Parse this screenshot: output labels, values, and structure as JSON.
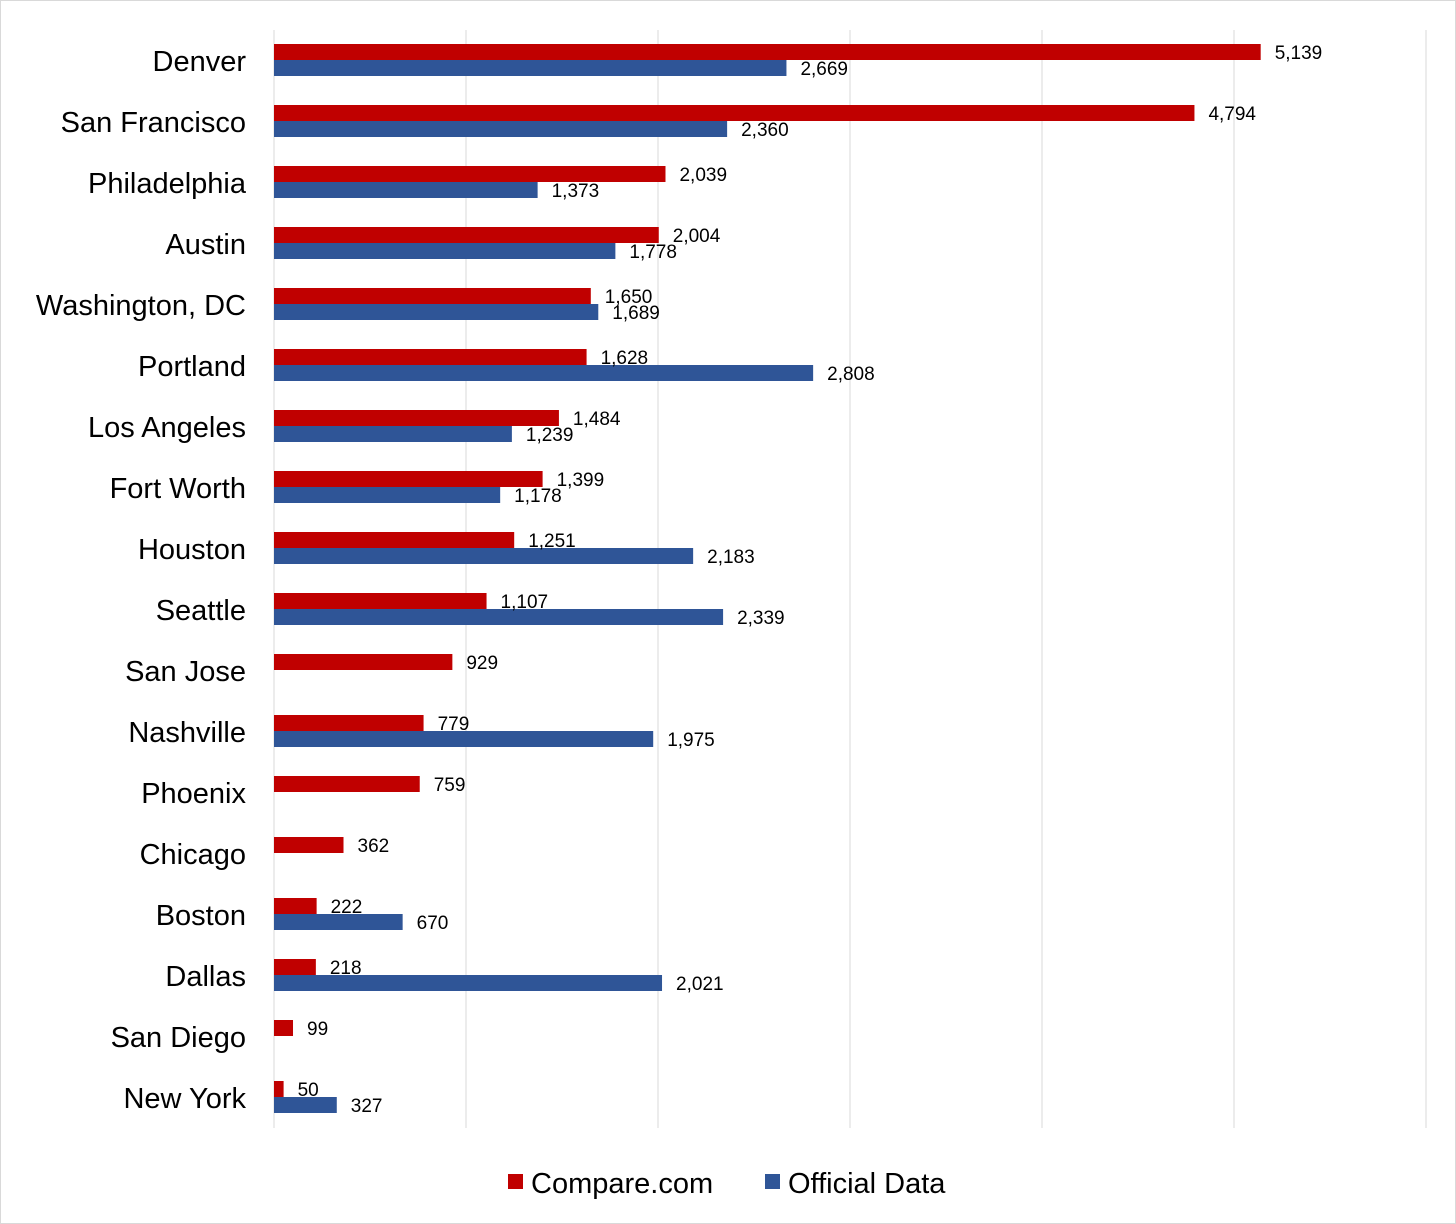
{
  "chart_data": {
    "type": "bar",
    "orientation": "horizontal",
    "categories": [
      "Denver",
      "San Francisco",
      "Philadelphia",
      "Austin",
      "Washington, DC",
      "Portland",
      "Los Angeles",
      "Fort Worth",
      "Houston",
      "Seattle",
      "San Jose",
      "Nashville",
      "Phoenix",
      "Chicago",
      "Boston",
      "Dallas",
      "San Diego",
      "New York"
    ],
    "series": [
      {
        "name": "Compare.com",
        "color": "#c00000",
        "values": [
          5139,
          4794,
          2039,
          2004,
          1650,
          1628,
          1484,
          1399,
          1251,
          1107,
          929,
          779,
          759,
          362,
          222,
          218,
          99,
          50
        ],
        "labels": [
          "5,139",
          "4,794",
          "2,039",
          "2,004",
          "1,650",
          "1,628",
          "1,484",
          "1,399",
          "1,251",
          "1,107",
          "929",
          "779",
          "759",
          "362",
          "222",
          "218",
          "99",
          "50"
        ]
      },
      {
        "name": "Official Data",
        "color": "#2f5597",
        "values": [
          2669,
          2360,
          1373,
          1778,
          1689,
          2808,
          1239,
          1178,
          2183,
          2339,
          null,
          1975,
          null,
          null,
          670,
          2021,
          null,
          327
        ],
        "labels": [
          "2,669",
          "2,360",
          "1,373",
          "1,778",
          "1,689",
          "2,808",
          "1,239",
          "1,178",
          "2,183",
          "2,339",
          null,
          "1,975",
          null,
          null,
          "670",
          "2,021",
          null,
          "327"
        ]
      }
    ],
    "xlim": [
      0,
      6000
    ],
    "gridlines": true,
    "gridline_color": "#d9d9d9",
    "x_tick_labels_shown": false,
    "legend_position": "bottom"
  }
}
